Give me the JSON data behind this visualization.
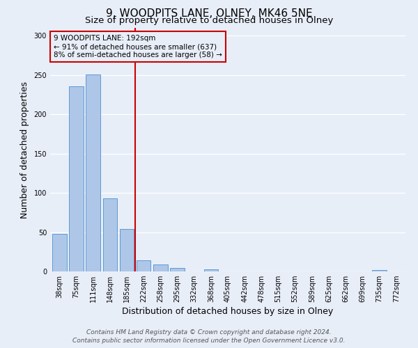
{
  "title": "9, WOODPITS LANE, OLNEY, MK46 5NE",
  "subtitle": "Size of property relative to detached houses in Olney",
  "xlabel": "Distribution of detached houses by size in Olney",
  "ylabel": "Number of detached properties",
  "categories": [
    "38sqm",
    "75sqm",
    "111sqm",
    "148sqm",
    "185sqm",
    "222sqm",
    "258sqm",
    "295sqm",
    "332sqm",
    "368sqm",
    "405sqm",
    "442sqm",
    "478sqm",
    "515sqm",
    "552sqm",
    "589sqm",
    "625sqm",
    "662sqm",
    "699sqm",
    "735sqm",
    "772sqm"
  ],
  "values": [
    48,
    236,
    251,
    93,
    54,
    14,
    9,
    4,
    0,
    3,
    0,
    0,
    0,
    0,
    0,
    0,
    0,
    0,
    0,
    2,
    0
  ],
  "bar_color": "#aec6e8",
  "bar_edge_color": "#5b9bd5",
  "property_line_x": 4.5,
  "annotation_line1": "9 WOODPITS LANE: 192sqm",
  "annotation_line2": "← 91% of detached houses are smaller (637)",
  "annotation_line3": "8% of semi-detached houses are larger (58) →",
  "annotation_box_color": "#cc0000",
  "ylim": [
    0,
    310
  ],
  "yticks": [
    0,
    50,
    100,
    150,
    200,
    250,
    300
  ],
  "footer1": "Contains HM Land Registry data © Crown copyright and database right 2024.",
  "footer2": "Contains public sector information licensed under the Open Government Licence v3.0.",
  "bg_color": "#e8eef8",
  "grid_color": "#ffffff",
  "title_fontsize": 11,
  "subtitle_fontsize": 9.5,
  "axis_label_fontsize": 9,
  "tick_fontsize": 7,
  "footer_fontsize": 6.5,
  "ann_fontsize": 7.5
}
